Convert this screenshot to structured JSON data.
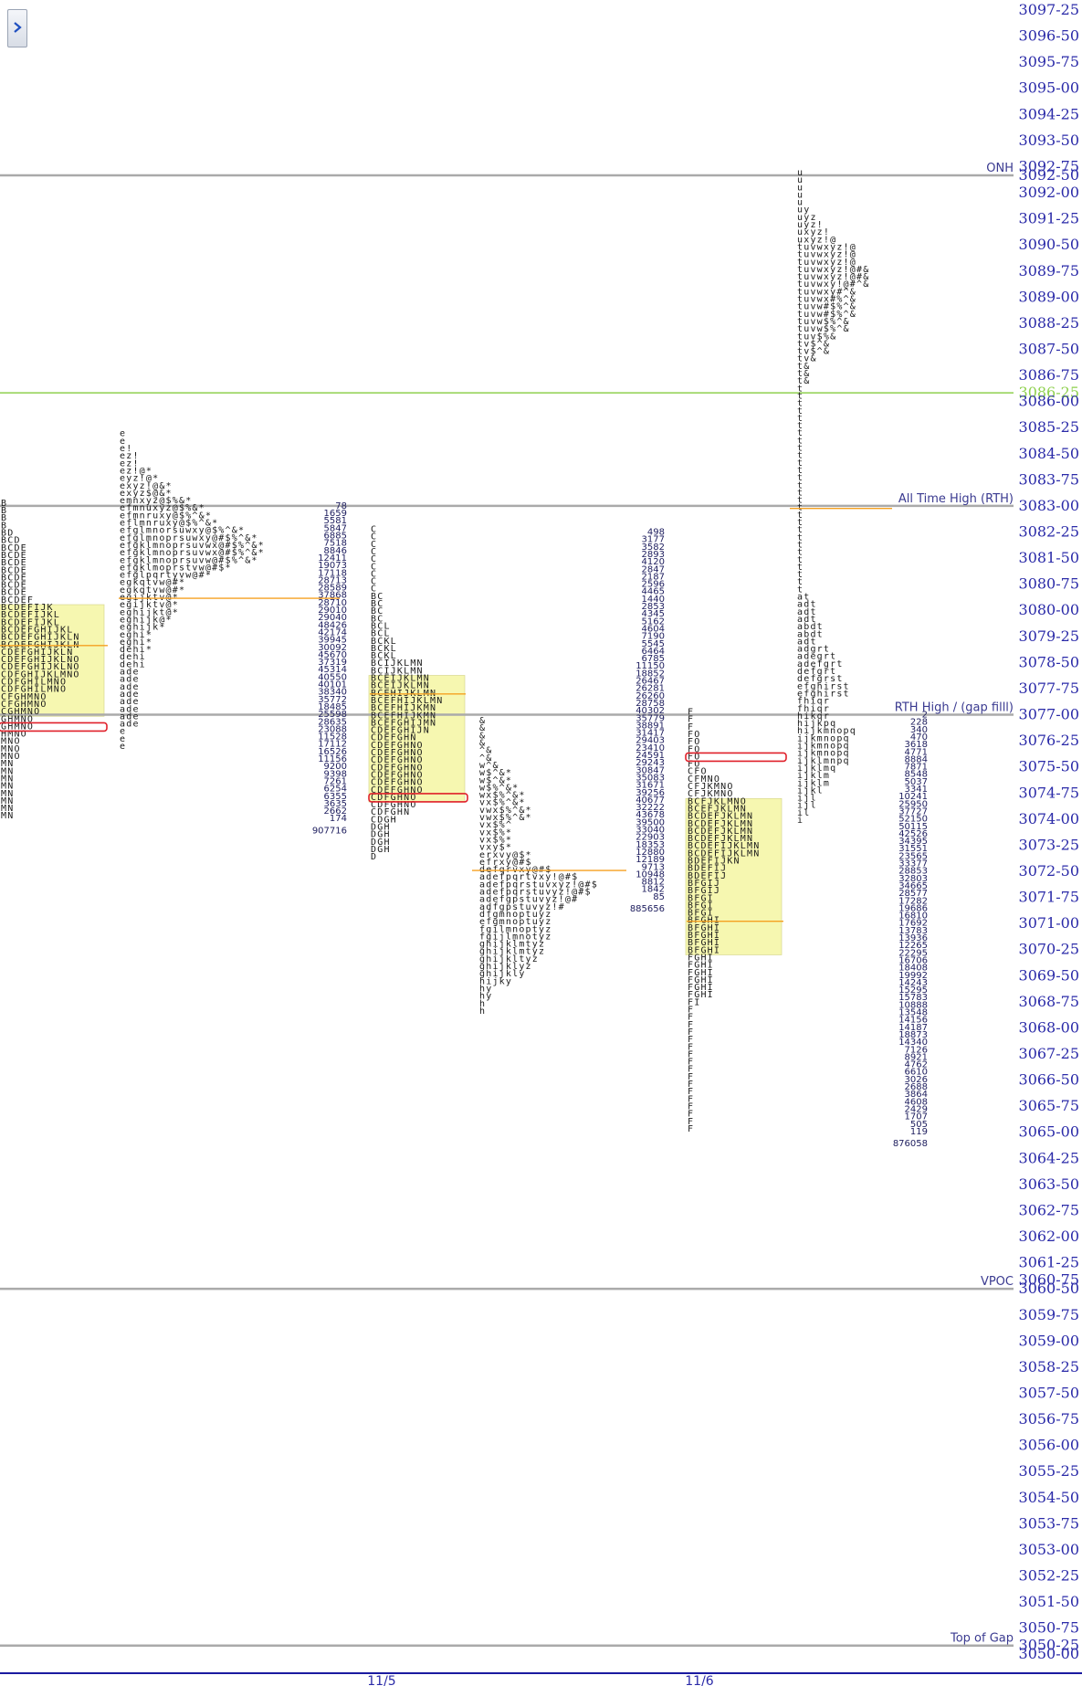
{
  "toolbar": {
    "expand_icon": "chevron-right-icon"
  },
  "colors": {
    "price_text": "#2a2aa8",
    "reference_line": "#aaaaaa",
    "green_line": "#8fd14f",
    "value_area": "#f6f7b0",
    "poc_outline": "#e0202a",
    "orange_line": "#f5a020",
    "initial_balance_text": "#3ad23a"
  },
  "chart_data": {
    "type": "market_profile",
    "y_axis": {
      "tick_labels": [
        "3097-25",
        "3096-50",
        "3095-75",
        "3095-00",
        "3094-25",
        "3093-50",
        "3092-75",
        "3092-50",
        "3092-00",
        "3091-25",
        "3090-50",
        "3089-75",
        "3089-00",
        "3088-25",
        "3087-50",
        "3086-75",
        "3086-25",
        "3086-00",
        "3085-25",
        "3084-50",
        "3083-75",
        "3083-00",
        "3082-25",
        "3081-50",
        "3080-75",
        "3080-00",
        "3079-25",
        "3078-50",
        "3077-75",
        "3077-00",
        "3076-25",
        "3075-50",
        "3074-75",
        "3074-00",
        "3073-25",
        "3072-50",
        "3071-75",
        "3071-00",
        "3070-25",
        "3069-50",
        "3068-75",
        "3068-00",
        "3067-25",
        "3066-50",
        "3065-75",
        "3065-00",
        "3064-25",
        "3063-50",
        "3062-75",
        "3062-00",
        "3061-25",
        "3060-75",
        "3060-50",
        "3059-75",
        "3059-00",
        "3058-25",
        "3057-50",
        "3056-75",
        "3056-00",
        "3055-25",
        "3054-50",
        "3053-75",
        "3053-00",
        "3052-25",
        "3051-50",
        "3050-75",
        "3050-25",
        "3050-00"
      ],
      "highlighted_tick": "3086-25"
    },
    "x_axis": {
      "tick_labels": [
        "11/5",
        "11/6"
      ]
    },
    "reference_levels": [
      {
        "label": "ONH",
        "price": 3092.5
      },
      {
        "label": "All Time High (RTH)",
        "price": 3083.0
      },
      {
        "label": "RTH High / (gap filll)",
        "price": 3077.0
      },
      {
        "label": "VPOC",
        "price": 3060.5
      },
      {
        "label": "Top of Gap",
        "price": 3050.25
      },
      {
        "label": "",
        "price": 3086.25,
        "color": "green"
      }
    ],
    "volume_columns": [
      {
        "top_price": 3083.0,
        "values": [
          "78",
          "1659",
          "5581",
          "5847",
          "6885",
          "7518",
          "8846",
          "12411",
          "19073",
          "17118",
          "28713",
          "28589",
          "37868",
          "28710",
          "29010",
          "29040",
          "48426",
          "42174",
          "39945",
          "30092",
          "45670",
          "37319",
          "45314",
          "40550",
          "40101",
          "38340",
          "35772",
          "18485",
          "25598",
          "28635",
          "23088",
          "11528",
          "17112",
          "16526",
          "11156",
          "9200",
          "9398",
          "7261",
          "6254",
          "6355",
          "3635",
          "2662",
          "174"
        ],
        "total": "907716"
      },
      {
        "top_price": 3082.25,
        "values": [
          "498",
          "3177",
          "3582",
          "2893",
          "4120",
          "2847",
          "2187",
          "2596",
          "4465",
          "1440",
          "2853",
          "4345",
          "5162",
          "4604",
          "7190",
          "5545",
          "6464",
          "6785",
          "11150",
          "18852",
          "26467",
          "26281",
          "26260",
          "28758",
          "40302",
          "35779",
          "38891",
          "31417",
          "29403",
          "23410",
          "24591",
          "29243",
          "30847",
          "35083",
          "31671",
          "39256",
          "40677",
          "32222",
          "43678",
          "39500",
          "33040",
          "22903",
          "18353",
          "12880",
          "12189",
          "9713",
          "10948",
          "8812",
          "1842",
          "85"
        ],
        "total": "885656"
      },
      {
        "top_price": 3077.0,
        "values": [
          "2",
          "228",
          "340",
          "470",
          "3618",
          "4771",
          "8884",
          "7871",
          "8548",
          "5037",
          "3341",
          "10241",
          "25950",
          "37727",
          "52150",
          "50115",
          "42526",
          "34395",
          "31551",
          "23565",
          "33377",
          "28853",
          "32803",
          "34665",
          "28577",
          "17282",
          "19686",
          "16810",
          "17692",
          "13783",
          "13936",
          "12265",
          "22295",
          "16706",
          "18408",
          "19992",
          "14243",
          "15295",
          "15783",
          "10888",
          "13548",
          "14156",
          "14187",
          "18873",
          "14340",
          "7126",
          "8921",
          "4762",
          "6610",
          "3026",
          "2688",
          "3864",
          "4608",
          "2429",
          "1707",
          "505",
          "119"
        ],
        "total": "876058"
      }
    ],
    "tpo_columns": [
      {
        "top_price": 3083.0,
        "rows": [
          "B",
          "B",
          "B",
          "B",
          "BD",
          "BCD",
          "BCDE",
          "BCDE",
          "BCDE",
          "BCDE",
          "BCDE",
          "BCDE",
          "BCDE",
          "BCDEF",
          "BCDEFIJK",
          "BCDEFIJKL",
          "BCDEFIJKL",
          "BCDEFGHIJKL",
          "BCDEFGHIJKLN",
          "BCDEFGHIJKLN",
          "CDEFGHIJKLN",
          "CDEFGHIJKLNO",
          "CDEFGHIJKLNO",
          "CDFGHIJKLMNO",
          "CDFGHILMNO",
          "CDFGHILMNO",
          "CFGHMNO",
          "CFGHMNO",
          "CGHMNO",
          "GHMNO",
          "GHMNO",
          "HMNO",
          "MNO",
          "MNO",
          "MNO",
          "MN",
          "MN",
          "MN",
          "MN",
          "MN",
          "MN",
          "MN",
          "MN"
        ]
      },
      {
        "top_price": 3085.0,
        "rows": [
          "e",
          "e",
          "e!",
          "ez!",
          "ez!",
          "ez!@*",
          "eyz!@*",
          "exyz!@&*",
          "exyz$@&*",
          "emnxyz@$%&*",
          "efmnuxyz@$%&*",
          "efmnruxy@$%^&*",
          "eflmnruxy@$%^&*",
          "efglmnorsuwxy@$%^&*",
          "efglmnoprsuwxy@#$%^&*",
          "efgklmnoprsuvwx@#$%^&*",
          "efgklmnoprsuvwx@#$%^&*",
          "efgklmnoprsuvw@#$%^&*",
          "efgklmoprstvw@#$*",
          "efglpqrtyvw@#*",
          "egkqtvw@#*",
          "egkqtvw@#*",
          "egijktv@*",
          "egijktv@*",
          "eghijkt@*",
          "eghijk@*",
          "eghijk*",
          "eghi*",
          "eghi*",
          "dehi*",
          "dehi",
          "dehi",
          "ade",
          "ade",
          "ade",
          "ade",
          "ade",
          "ade",
          "ade",
          "ade",
          "e",
          "e",
          "e"
        ]
      },
      {
        "top_price": 3082.25,
        "rows": [
          "C",
          "C",
          "C",
          "C",
          "C",
          "C",
          "C",
          "C",
          "C",
          "BC",
          "BC",
          "BC",
          "BC",
          "BCL",
          "BCL",
          "BCKL",
          "BCKL",
          "BCKL",
          "BCIJKLMN",
          "BCIJKLMN",
          "BCEIJKLMN",
          "BCEIJKLMN",
          "BCEHIJKLMN",
          "BCEFHIJKLMN",
          "BCEFHIJKMN",
          "BCEFHIJKMN",
          "BCEFGHIJMN",
          "CDEFGHIJN",
          "CDEFGHN",
          "CDEFGHNO",
          "CDEFGHNO",
          "CDEFGHNO",
          "CDEFGHNO",
          "CDEFGHNO",
          "CDEFGHNO",
          "CDEFGHNO",
          "CDFGHNO",
          "CDFGHNO",
          "CDFGHN",
          "CDGH",
          "DGH",
          "DGH",
          "DGH",
          "DGH",
          "D"
        ]
      },
      {
        "top_price": 3076.75,
        "rows": [
          "&",
          "&",
          "&",
          "&",
          "^&",
          "^&",
          "w^&",
          "w$^&*",
          "w$^&*",
          "w$%^&*",
          "wx$%^&*",
          "vx$%^&*",
          "vwx$%^&*",
          "vwx$%^&*",
          "vx$%^",
          "vx$%*",
          "vx$%*",
          "vxy$*",
          "erxvy@$*",
          "efrxy@#$",
          "defqrvxy@#$",
          "adefpqrtvxy!@#$",
          "adefpqrstuvxyz!@#$",
          "adefpqrstuvyz!@#$",
          "adefgpstuvyz!@#",
          "adfgpstuvyz!#",
          "dfgmnoptuyz",
          "efgmnoptuyz",
          "fgilmnoptyz",
          "fgijlmnotyz",
          "ghijklmtyz",
          "ghijklmtyz",
          "ghijkltyz",
          "ghijklyz",
          "ghijkly",
          "hijky",
          "hy",
          "hy",
          "h",
          "h"
        ]
      },
      {
        "top_price": 3077.0,
        "rows": [
          "F",
          "F",
          "F",
          "FO",
          "FO",
          "FO",
          "FO",
          "FO",
          "CFO",
          "CFMNO",
          "CFJKMNO",
          "CFJKMNO",
          "BCFJKLMNO",
          "BCEFJKLMN",
          "BCDEFJKLMN",
          "BCDEFJKLMN",
          "BCDEFJKLMN",
          "BCDEFJKLMN",
          "BCDEFIJKLMN",
          "BCDEFIJKLMN",
          "BDEFIJKN",
          "BDEFIJ",
          "BDEFIJ",
          "BFGIJ",
          "BFGIJ",
          "BFGI",
          "BFGI",
          "BFGI",
          "BFGHI",
          "BFGHI",
          "BFGHI",
          "BFGHI",
          "BFGHI",
          "FGHI",
          "FGHI",
          "FGHI",
          "FGHI",
          "FGHI",
          "FGHI",
          "FI",
          "F",
          "F",
          "F",
          "F",
          "F",
          "F",
          "F",
          "F",
          "F",
          "F",
          "F",
          "F",
          "F",
          "F",
          "F",
          "F",
          "F"
        ]
      },
      {
        "top_price": 3092.5,
        "rows": [
          "u",
          "u",
          "u",
          "u",
          "u",
          "uy",
          "uyz",
          "uyz!",
          "uxyz!",
          "uxyz!@",
          "tuvwxyz!@",
          "tuvwxyz!@",
          "tuvwxyz!@",
          "tuvwxyz!@#&",
          "tuvwxyz!@#&",
          "tuvwxy!@#^&",
          "tuvwxy#^&",
          "tuvwx#%^&",
          "tuvw#$%^&",
          "tuvw#$%^&",
          "tuvw$%^&",
          "tuvw$%^&",
          "tuv$%&",
          "tv$^&",
          "tv$^&",
          "tv&",
          "t&",
          "t&",
          "t&",
          "t",
          "t",
          "t",
          "t",
          "t",
          "t",
          "t",
          "t",
          "t",
          "t",
          "t",
          "t",
          "t",
          "t",
          "t",
          "t",
          "t",
          "t",
          "t",
          "t",
          "t",
          "t",
          "t",
          "t",
          "t",
          "t",
          "t",
          "t",
          "at",
          "adt",
          "adt",
          "adt",
          "abdt",
          "abdt",
          "adt",
          "adgrt",
          "adegrt",
          "adefgrt",
          "defgrt",
          "defgrst",
          "efghirst",
          "efghirst",
          "fhiqr",
          "fhiqr",
          "hikqr",
          "hijkpq",
          "hijkmnopq",
          "ijkmnopq",
          "ijkmnopq",
          "ijkmnopq",
          "ijklmnpq",
          "ijklmq",
          "ijklm",
          "ijklm",
          "ijkl",
          "ijl",
          "ijl",
          "il",
          "i"
        ]
      }
    ]
  }
}
